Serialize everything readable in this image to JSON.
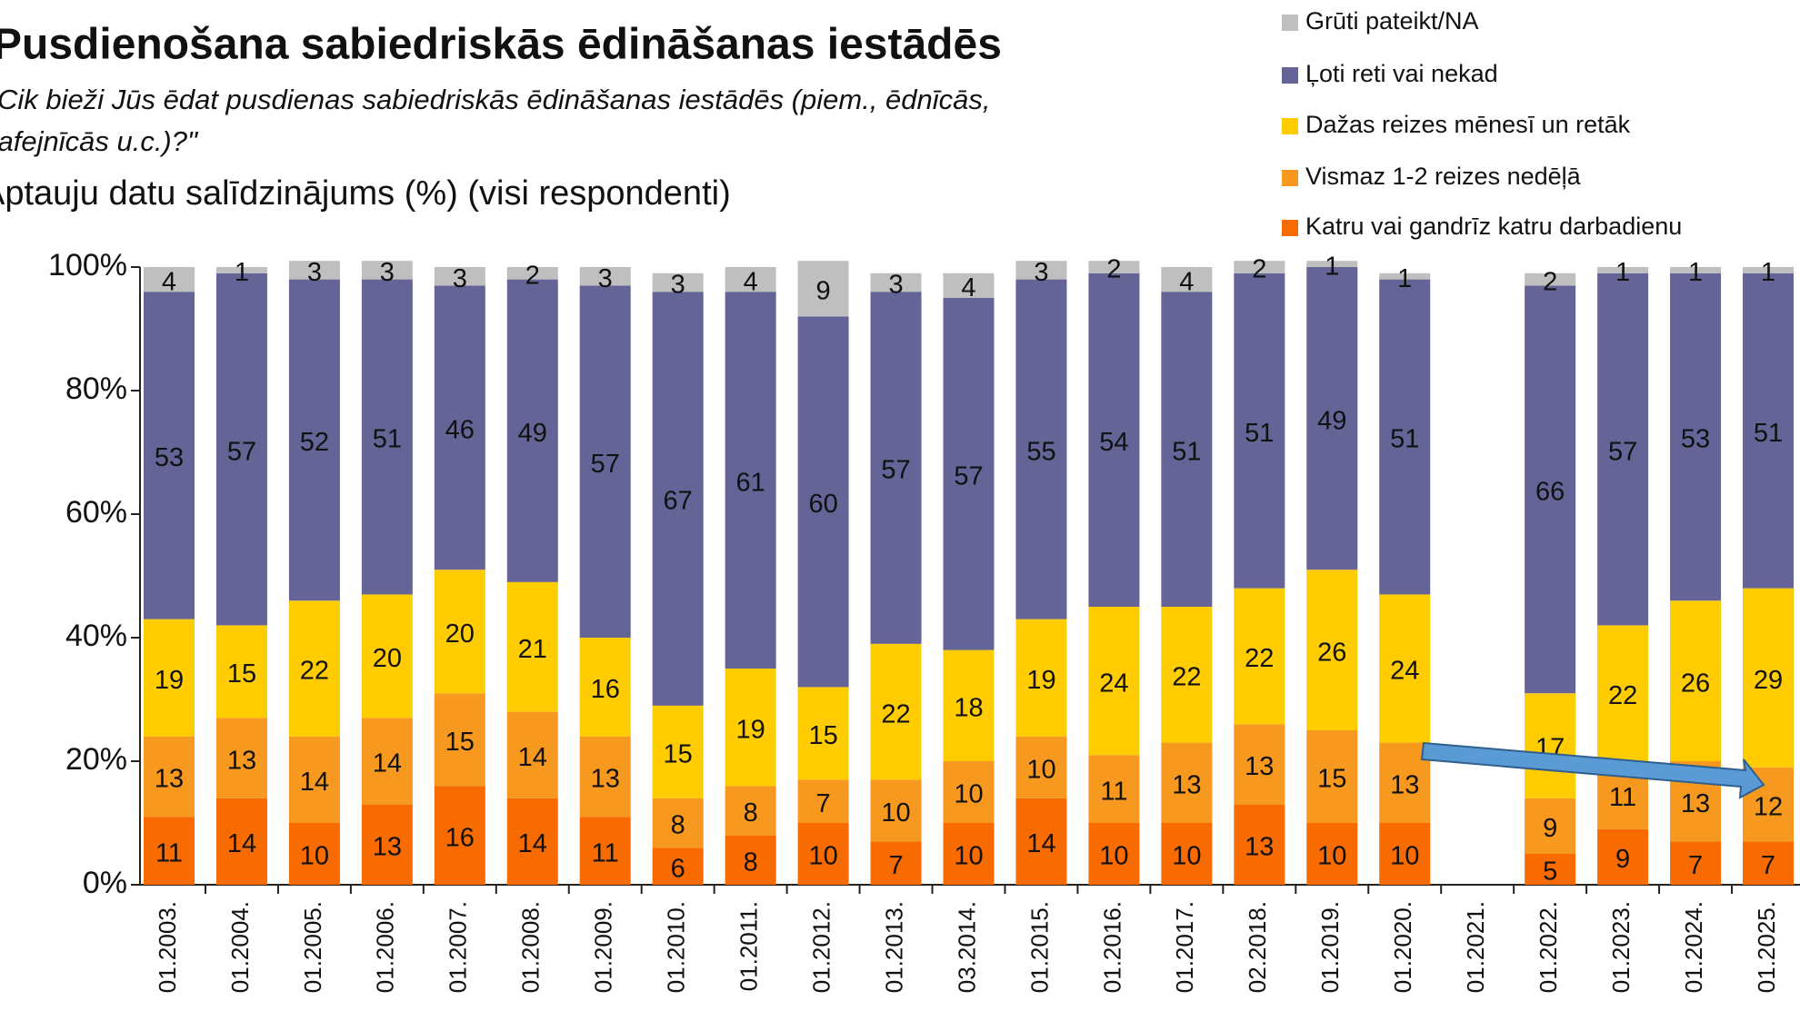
{
  "chart_data": {
    "type": "stacked-bar",
    "title": "Pusdienošana sabiedriskās ēdināšanas iestādēs",
    "subtitle": [
      "\"Cik bieži Jūs ēdat pusdienas sabiedriskās ēdināšanas iestādēs (piem., ēdnīcās,",
      "kafejnīcās u.c.)?\""
    ],
    "note": "Aptauju datu salīdzinājums (%) (visi respondenti)",
    "categories": [
      "01.2003.",
      "01.2004.",
      "01.2005.",
      "01.2006.",
      "01.2007.",
      "01.2008.",
      "01.2009.",
      "01.2010.",
      "01.2011.",
      "01.2012.",
      "01.2013.",
      "03.2014.",
      "01.2015.",
      "01.2016.",
      "01.2017.",
      "02.2018.",
      "01.2019.",
      "01.2020.",
      "01.2021.",
      "01.2022.",
      "01.2023.",
      "01.2024.",
      "01.2025."
    ],
    "series": [
      {
        "name": "Katru vai gandrīz katru darbadienu",
        "color": "#f76b00",
        "values": [
          11,
          14,
          10,
          13,
          16,
          14,
          11,
          6,
          8,
          10,
          7,
          10,
          14,
          10,
          10,
          13,
          10,
          10,
          null,
          5,
          9,
          7,
          7
        ]
      },
      {
        "name": "Vismaz 1-2 reizes nedēļā",
        "color": "#f7991e",
        "values": [
          13,
          13,
          14,
          14,
          15,
          14,
          13,
          8,
          8,
          7,
          10,
          10,
          10,
          11,
          13,
          13,
          15,
          13,
          null,
          9,
          11,
          13,
          12
        ]
      },
      {
        "name": "Dažas reizes mēnesī un retāk",
        "color": "#ffcc00",
        "values": [
          19,
          15,
          22,
          20,
          20,
          21,
          16,
          15,
          19,
          15,
          22,
          18,
          19,
          24,
          22,
          22,
          26,
          24,
          null,
          17,
          22,
          26,
          29
        ]
      },
      {
        "name": "Ļoti reti vai nekad",
        "color": "#646497",
        "values": [
          53,
          57,
          52,
          51,
          46,
          49,
          57,
          67,
          61,
          60,
          57,
          57,
          55,
          54,
          51,
          51,
          49,
          51,
          null,
          66,
          57,
          53,
          51
        ]
      },
      {
        "name": "Grūti pateikt/NA",
        "color": "#bfbfbf",
        "values": [
          4,
          1,
          3,
          3,
          3,
          2,
          3,
          3,
          4,
          9,
          3,
          4,
          3,
          2,
          4,
          2,
          1,
          1,
          null,
          2,
          1,
          1,
          1
        ]
      }
    ],
    "ylim": [
      0,
      100
    ],
    "yticks": [
      {
        "value": 0,
        "label": "0%"
      },
      {
        "value": 20,
        "label": "20%"
      },
      {
        "value": 40,
        "label": "40%"
      },
      {
        "value": 60,
        "label": "60%"
      },
      {
        "value": 80,
        "label": "80%"
      },
      {
        "value": 100,
        "label": "100%"
      }
    ],
    "legend": "top-right"
  }
}
